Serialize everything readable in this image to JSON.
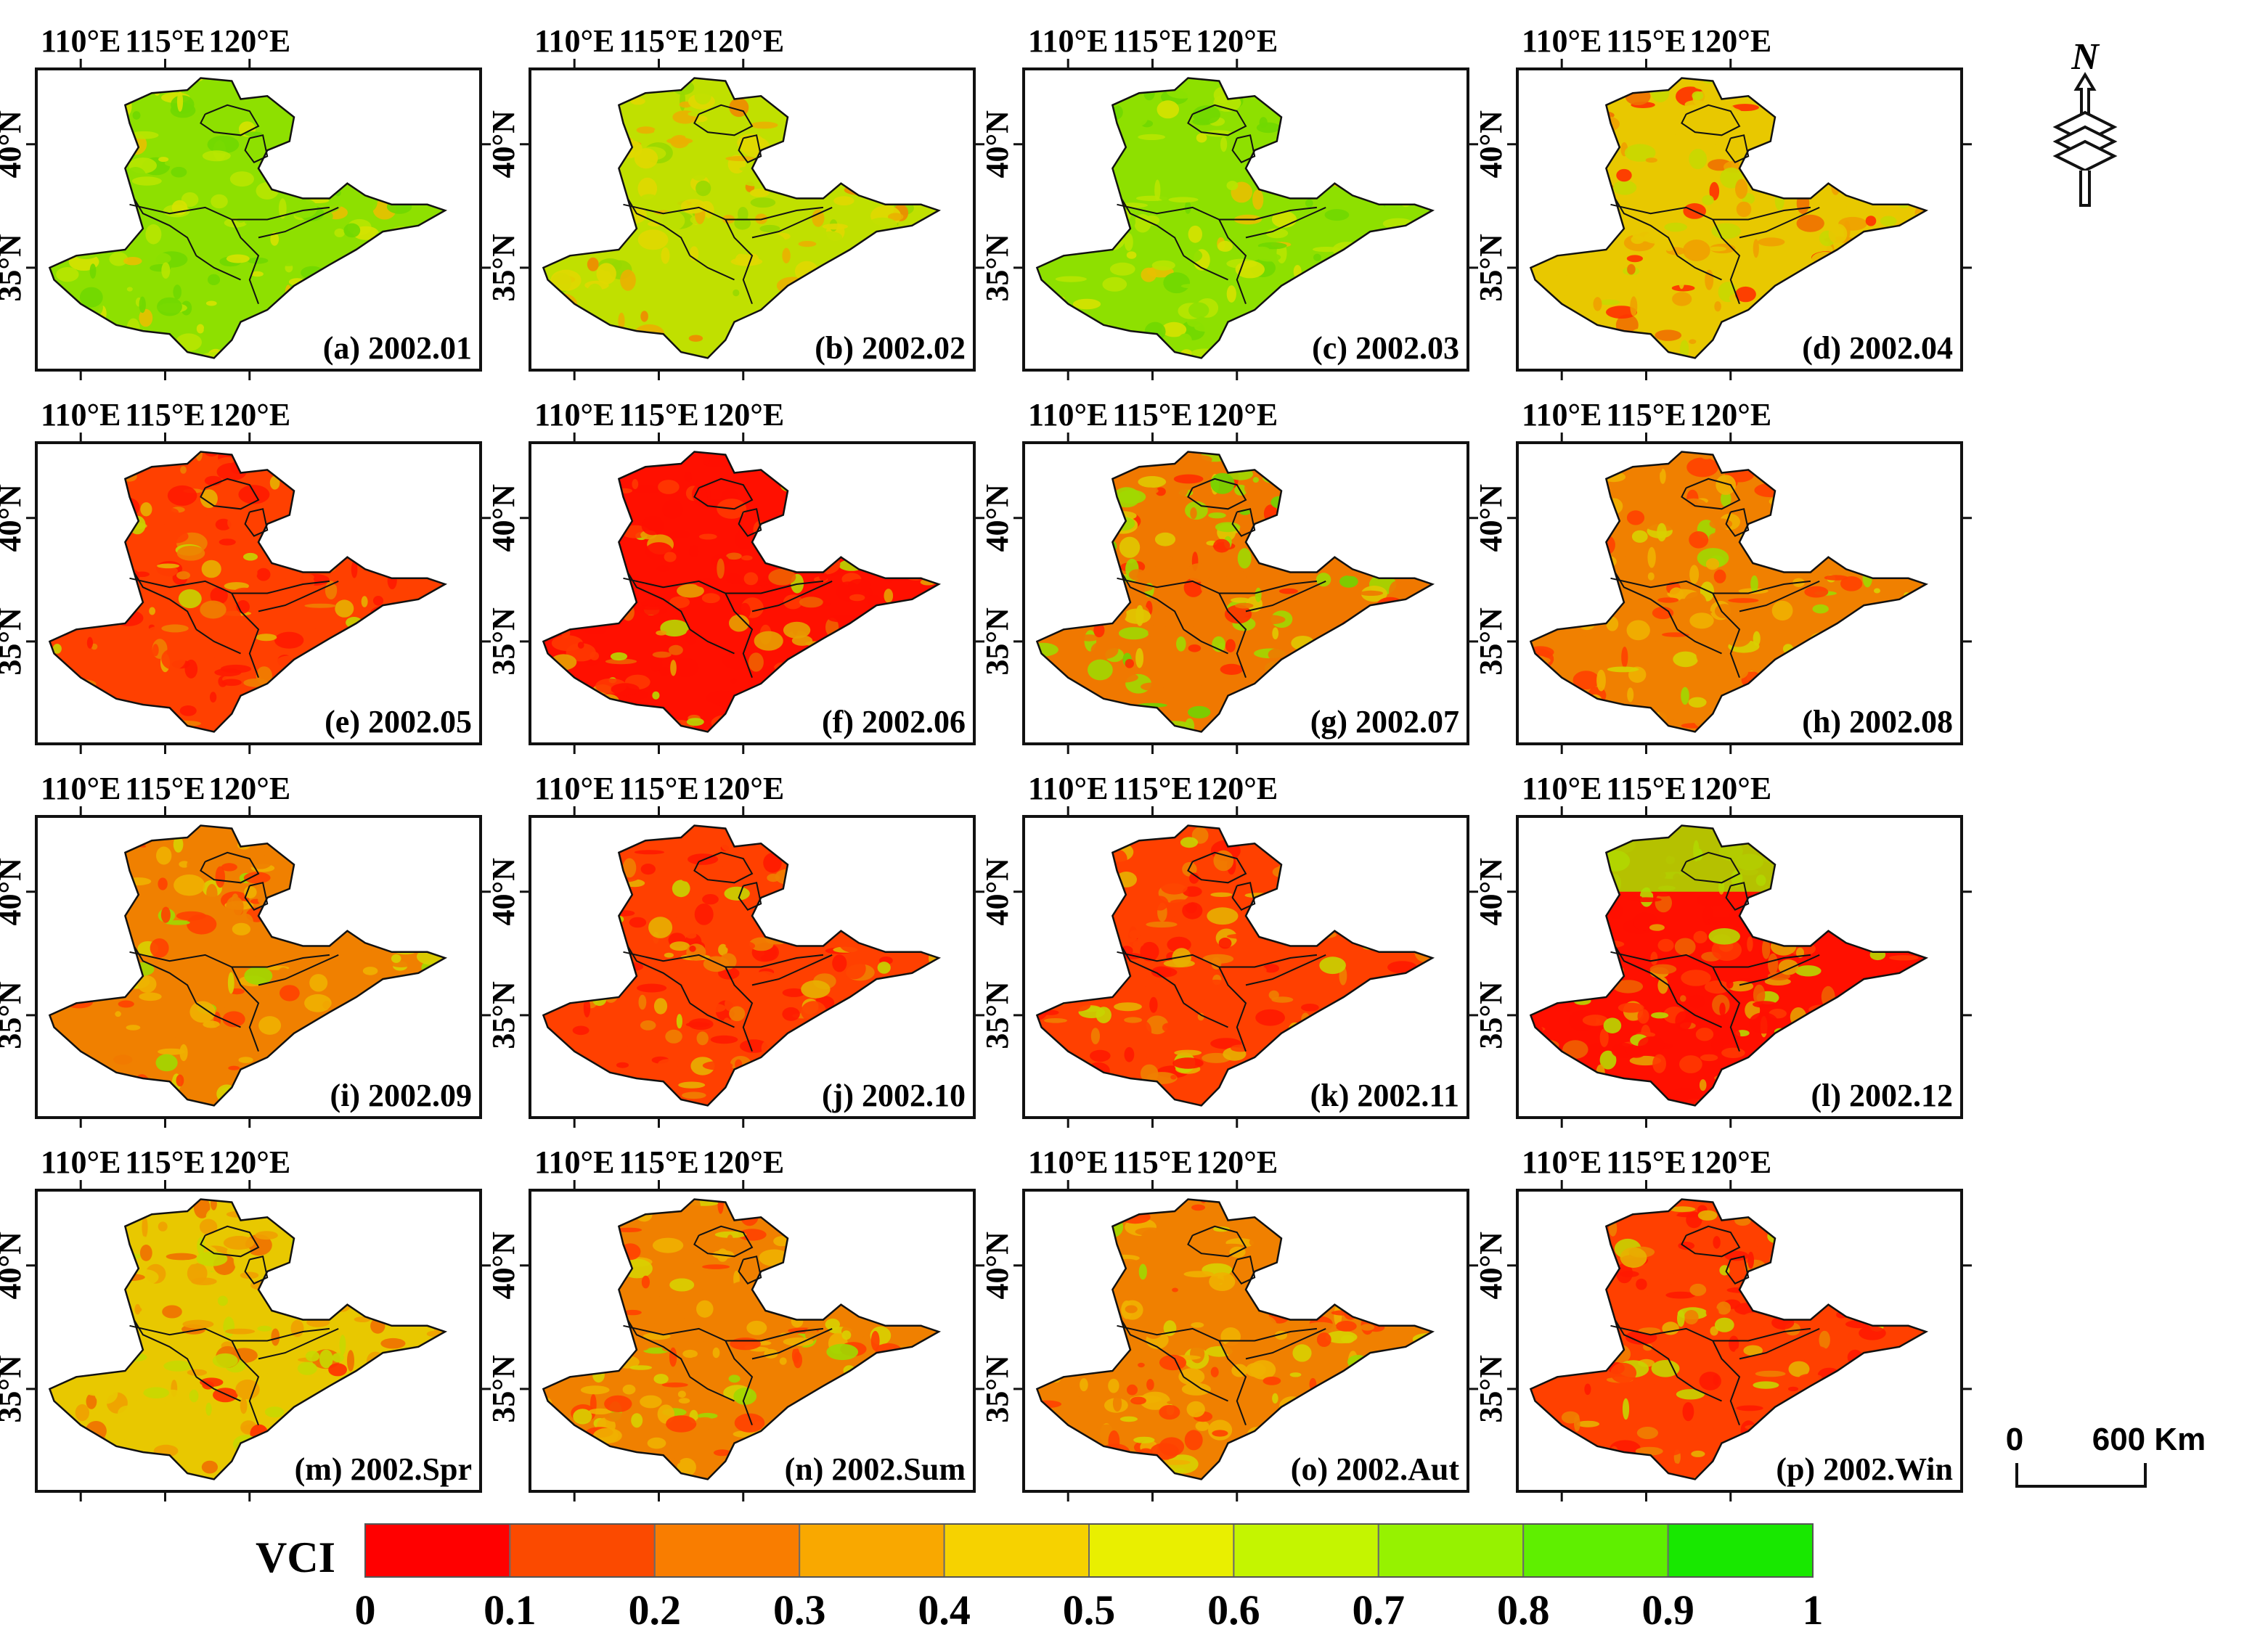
{
  "axis_labels": {
    "longitude": [
      "110°E",
      "115°E",
      "120°E"
    ],
    "latitude": [
      "40°N",
      "35°N"
    ]
  },
  "panels": [
    {
      "label": "(a) 2002.01",
      "dominant": "green"
    },
    {
      "label": "(b) 2002.02",
      "dominant": "yellow-green"
    },
    {
      "label": "(c) 2002.03",
      "dominant": "green"
    },
    {
      "label": "(d) 2002.04",
      "dominant": "yellow-orange"
    },
    {
      "label": "(e) 2002.05",
      "dominant": "red-orange"
    },
    {
      "label": "(f) 2002.06",
      "dominant": "red"
    },
    {
      "label": "(g) 2002.07",
      "dominant": "mixed"
    },
    {
      "label": "(h) 2002.08",
      "dominant": "orange"
    },
    {
      "label": "(i) 2002.09",
      "dominant": "orange"
    },
    {
      "label": "(j) 2002.10",
      "dominant": "red-orange"
    },
    {
      "label": "(k) 2002.11",
      "dominant": "red-orange"
    },
    {
      "label": "(l) 2002.12",
      "dominant": "red"
    },
    {
      "label": "(m) 2002.Spr",
      "dominant": "yellow-orange"
    },
    {
      "label": "(n) 2002.Sum",
      "dominant": "orange"
    },
    {
      "label": "(o) 2002.Aut",
      "dominant": "orange"
    },
    {
      "label": "(p) 2002.Win",
      "dominant": "red-orange"
    }
  ],
  "north_arrow": {
    "letter": "N"
  },
  "scale_bar": {
    "start": "0",
    "end": "600 Km"
  },
  "legend": {
    "title": "VCI",
    "ticks": [
      "0",
      "0.1",
      "0.2",
      "0.3",
      "0.4",
      "0.5",
      "0.6",
      "0.7",
      "0.8",
      "0.9",
      "1"
    ],
    "colors": [
      "#ff0000",
      "#fb4a00",
      "#f97d00",
      "#f9a800",
      "#f6d200",
      "#e9ef00",
      "#c4f500",
      "#96f200",
      "#5fef00",
      "#18e800"
    ]
  },
  "palette": {
    "green": [
      "#8ee000",
      "#b8e600",
      "#70d800",
      "#d6e200",
      "#e8c000"
    ],
    "yellow-green": [
      "#c0e000",
      "#e0d800",
      "#98d800",
      "#eab000",
      "#f08a00"
    ],
    "yellow-orange": [
      "#e8c800",
      "#f0a000",
      "#c8d800",
      "#f07000",
      "#ff3000"
    ],
    "orange": [
      "#f08000",
      "#f0b000",
      "#ff4000",
      "#d8d000",
      "#a0d800"
    ],
    "red-orange": [
      "#ff4000",
      "#ff1a00",
      "#f08000",
      "#e8b000",
      "#c8d400"
    ],
    "red": [
      "#ff1000",
      "#ff3800",
      "#f06000",
      "#e8a000",
      "#b8d800"
    ],
    "mixed": [
      "#f07800",
      "#a0d800",
      "#ff2e00",
      "#e0c800",
      "#70d400"
    ]
  }
}
